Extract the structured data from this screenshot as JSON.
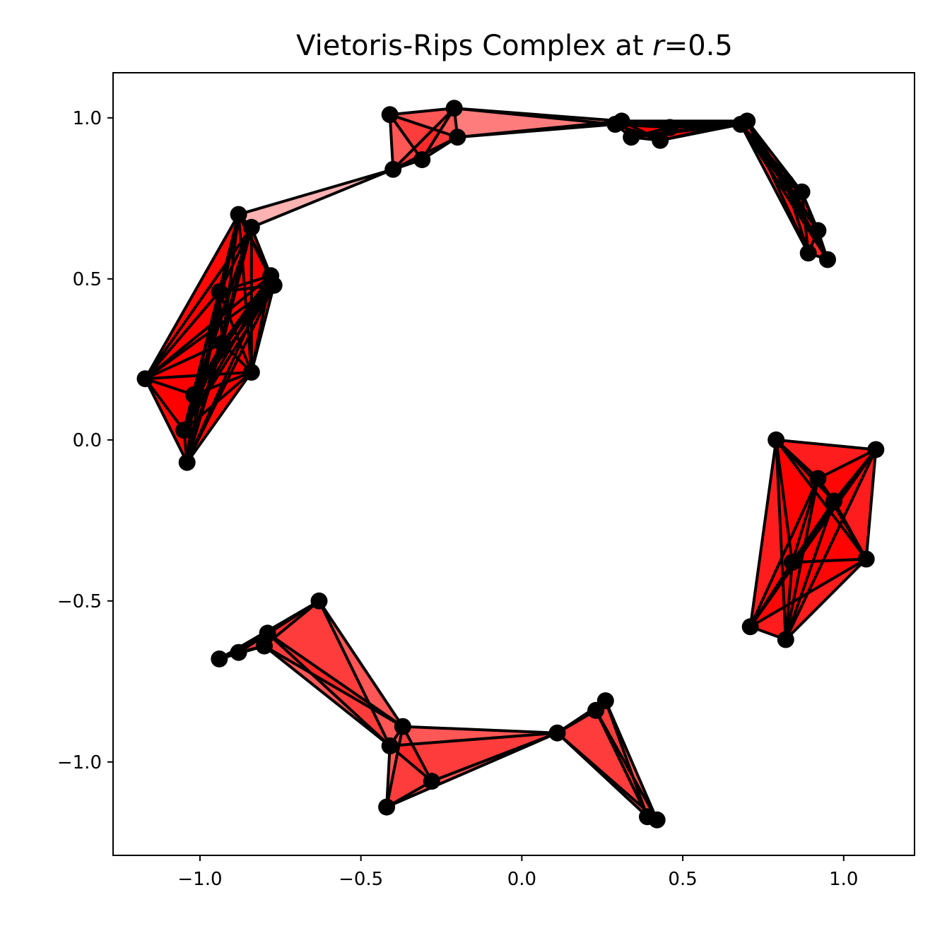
{
  "chart_data": {
    "type": "scatter",
    "title": {
      "prefix": "Vietoris-Rips Complex at ",
      "variable": "r",
      "suffix": "=0.5"
    },
    "xlabel": "",
    "ylabel": "",
    "xlim": [
      -1.27,
      1.22
    ],
    "ylim": [
      -1.29,
      1.14
    ],
    "xticks": [
      {
        "value": -1.0,
        "label": "−1.0"
      },
      {
        "value": -0.5,
        "label": "−0.5"
      },
      {
        "value": 0.0,
        "label": "0.0"
      },
      {
        "value": 0.5,
        "label": "0.5"
      },
      {
        "value": 1.0,
        "label": "1.0"
      }
    ],
    "yticks": [
      {
        "value": -1.0,
        "label": "−1.0"
      },
      {
        "value": -0.5,
        "label": "−0.5"
      },
      {
        "value": 0.0,
        "label": "0.0"
      },
      {
        "value": 0.5,
        "label": "0.5"
      },
      {
        "value": 1.0,
        "label": "1.0"
      }
    ],
    "grid": false,
    "colors": {
      "vertex": "#000000",
      "edge": "#000000",
      "face": "#ff0000"
    },
    "face_alpha": 0.3,
    "points": [
      [
        -1.17,
        0.19
      ],
      [
        -1.04,
        -0.07
      ],
      [
        -1.02,
        0.14
      ],
      [
        -1.05,
        0.03
      ],
      [
        -0.93,
        0.3
      ],
      [
        -0.84,
        0.21
      ],
      [
        -0.94,
        0.46
      ],
      [
        -0.78,
        0.51
      ],
      [
        -0.77,
        0.48
      ],
      [
        -0.88,
        0.7
      ],
      [
        -0.84,
        0.66
      ],
      [
        -0.4,
        0.84
      ],
      [
        -0.31,
        0.87
      ],
      [
        -0.41,
        1.01
      ],
      [
        -0.2,
        0.94
      ],
      [
        -0.21,
        1.03
      ],
      [
        0.29,
        0.98
      ],
      [
        0.31,
        0.99
      ],
      [
        0.34,
        0.94
      ],
      [
        0.43,
        0.93
      ],
      [
        0.46,
        0.97
      ],
      [
        0.7,
        0.99
      ],
      [
        0.68,
        0.98
      ],
      [
        0.82,
        0.8
      ],
      [
        0.87,
        0.77
      ],
      [
        0.92,
        0.65
      ],
      [
        0.89,
        0.58
      ],
      [
        0.95,
        0.56
      ],
      [
        0.79,
        0.0
      ],
      [
        1.1,
        -0.03
      ],
      [
        0.92,
        -0.12
      ],
      [
        0.97,
        -0.19
      ],
      [
        1.07,
        -0.37
      ],
      [
        0.84,
        -0.38
      ],
      [
        0.71,
        -0.58
      ],
      [
        0.82,
        -0.62
      ],
      [
        -0.63,
        -0.5
      ],
      [
        -0.79,
        -0.6
      ],
      [
        -0.8,
        -0.64
      ],
      [
        -0.88,
        -0.66
      ],
      [
        -0.94,
        -0.68
      ],
      [
        -0.37,
        -0.89
      ],
      [
        -0.41,
        -0.95
      ],
      [
        -0.28,
        -1.06
      ],
      [
        -0.42,
        -1.14
      ],
      [
        0.11,
        -0.91
      ],
      [
        0.26,
        -0.81
      ],
      [
        0.23,
        -0.84
      ],
      [
        0.39,
        -1.17
      ],
      [
        0.42,
        -1.18
      ]
    ],
    "clusters": [
      [
        0,
        1,
        2,
        3,
        4,
        5,
        6,
        7,
        8,
        9,
        10
      ],
      [
        9,
        10,
        11
      ],
      [
        11,
        12,
        13,
        14,
        15
      ],
      [
        14,
        15,
        16,
        17
      ],
      [
        16,
        17,
        18,
        19,
        20,
        21,
        22
      ],
      [
        21,
        22,
        23,
        24,
        25,
        26,
        27
      ],
      [
        28,
        29,
        30,
        31,
        32,
        33,
        34,
        35
      ],
      [
        36,
        37,
        38,
        39,
        40
      ],
      [
        36,
        37,
        38,
        41,
        42
      ],
      [
        41,
        42,
        43,
        44,
        45
      ],
      [
        45,
        46,
        47,
        48,
        49
      ]
    ]
  }
}
